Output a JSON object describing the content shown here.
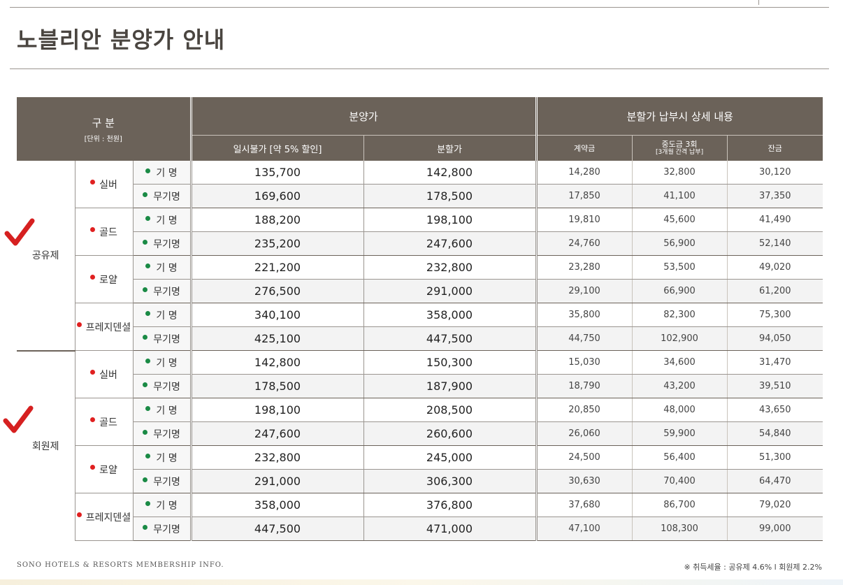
{
  "title": "노블리안 분양가 안내",
  "header": {
    "category_label": "구 분",
    "unit_label": "[단위 : 천원]",
    "price_group": "분양가",
    "installment_group": "분할가 납부시 상세 내용",
    "col_lump_sum": "일시불가 [약 5% 할인]",
    "col_installment": "분할가",
    "col_deposit": "계약금",
    "col_interim_line1": "중도금 3회",
    "col_interim_line2": "[3개월 간격 납부]",
    "col_balance": "잔금"
  },
  "groups": [
    {
      "name": "공유제",
      "tiers": [
        {
          "name": "실버",
          "rows": [
            {
              "type": "기 명",
              "lump": "135,700",
              "inst": "142,800",
              "deposit": "14,280",
              "interim": "32,800",
              "balance": "30,120"
            },
            {
              "type": "무기명",
              "lump": "169,600",
              "inst": "178,500",
              "deposit": "17,850",
              "interim": "41,100",
              "balance": "37,350"
            }
          ]
        },
        {
          "name": "골드",
          "rows": [
            {
              "type": "기 명",
              "lump": "188,200",
              "inst": "198,100",
              "deposit": "19,810",
              "interim": "45,600",
              "balance": "41,490"
            },
            {
              "type": "무기명",
              "lump": "235,200",
              "inst": "247,600",
              "deposit": "24,760",
              "interim": "56,900",
              "balance": "52,140"
            }
          ]
        },
        {
          "name": "로얄",
          "rows": [
            {
              "type": "기 명",
              "lump": "221,200",
              "inst": "232,800",
              "deposit": "23,280",
              "interim": "53,500",
              "balance": "49,020"
            },
            {
              "type": "무기명",
              "lump": "276,500",
              "inst": "291,000",
              "deposit": "29,100",
              "interim": "66,900",
              "balance": "61,200"
            }
          ]
        },
        {
          "name": "프레지덴셜",
          "rows": [
            {
              "type": "기 명",
              "lump": "340,100",
              "inst": "358,000",
              "deposit": "35,800",
              "interim": "82,300",
              "balance": "75,300"
            },
            {
              "type": "무기명",
              "lump": "425,100",
              "inst": "447,500",
              "deposit": "44,750",
              "interim": "102,900",
              "balance": "94,050"
            }
          ]
        }
      ]
    },
    {
      "name": "회원제",
      "tiers": [
        {
          "name": "실버",
          "rows": [
            {
              "type": "기 명",
              "lump": "142,800",
              "inst": "150,300",
              "deposit": "15,030",
              "interim": "34,600",
              "balance": "31,470"
            },
            {
              "type": "무기명",
              "lump": "178,500",
              "inst": "187,900",
              "deposit": "18,790",
              "interim": "43,200",
              "balance": "39,510"
            }
          ]
        },
        {
          "name": "골드",
          "rows": [
            {
              "type": "기 명",
              "lump": "198,100",
              "inst": "208,500",
              "deposit": "20,850",
              "interim": "48,000",
              "balance": "43,650"
            },
            {
              "type": "무기명",
              "lump": "247,600",
              "inst": "260,600",
              "deposit": "26,060",
              "interim": "59,900",
              "balance": "54,840"
            }
          ]
        },
        {
          "name": "로얄",
          "rows": [
            {
              "type": "기 명",
              "lump": "232,800",
              "inst": "245,000",
              "deposit": "24,500",
              "interim": "56,400",
              "balance": "51,300"
            },
            {
              "type": "무기명",
              "lump": "291,000",
              "inst": "306,300",
              "deposit": "30,630",
              "interim": "70,400",
              "balance": "64,470"
            }
          ]
        },
        {
          "name": "프레지덴셜",
          "rows": [
            {
              "type": "기 명",
              "lump": "358,000",
              "inst": "376,800",
              "deposit": "37,680",
              "interim": "86,700",
              "balance": "79,020"
            },
            {
              "type": "무기명",
              "lump": "447,500",
              "inst": "471,000",
              "deposit": "47,100",
              "interim": "108,300",
              "balance": "99,000"
            }
          ]
        }
      ]
    }
  ],
  "footer": {
    "left": "SONO HOTELS & RESORTS MEMBERSHIP INFO.",
    "right": "※ 취득세율 : 공유제 4.6% l 회원제 2.2%"
  },
  "colors": {
    "header_bg": "#6b6259",
    "red_dot": "#e02020",
    "green_dot": "#1a8a45",
    "checkmark": "#d62020"
  }
}
